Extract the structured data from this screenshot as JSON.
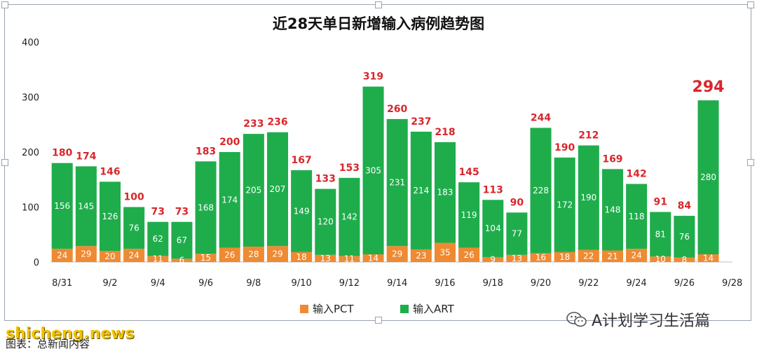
{
  "chart_data": {
    "type": "bar",
    "stacked": true,
    "title": "近28天单日新增输入病例趋势图",
    "ylim": [
      0,
      400
    ],
    "yticks": [
      0,
      100,
      200,
      300,
      400
    ],
    "grid": false,
    "legend_position": "bottom",
    "categories": [
      "8/31",
      "9/1",
      "9/2",
      "9/3",
      "9/4",
      "9/5",
      "9/6",
      "9/7",
      "9/8",
      "9/9",
      "9/10",
      "9/11",
      "9/12",
      "9/13",
      "9/14",
      "9/15",
      "9/16",
      "9/17",
      "9/18",
      "9/19",
      "9/20",
      "9/21",
      "9/22",
      "9/23",
      "9/24",
      "9/25",
      "9/26",
      "9/27"
    ],
    "xtick_labels": [
      "8/31",
      "9/2",
      "9/4",
      "9/6",
      "9/8",
      "9/10",
      "9/12",
      "9/14",
      "9/16",
      "9/18",
      "9/20",
      "9/22",
      "9/24",
      "9/26",
      "9/28"
    ],
    "series": [
      {
        "name": "输入PCT",
        "color": "#ef8a32",
        "values": [
          24,
          29,
          20,
          24,
          11,
          6,
          15,
          26,
          28,
          29,
          18,
          13,
          11,
          14,
          29,
          23,
          35,
          26,
          9,
          13,
          16,
          18,
          22,
          21,
          24,
          10,
          8,
          14
        ]
      },
      {
        "name": "输入ART",
        "color": "#1fad4c",
        "values": [
          156,
          145,
          126,
          76,
          62,
          67,
          168,
          174,
          205,
          207,
          149,
          120,
          142,
          305,
          231,
          214,
          183,
          119,
          104,
          77,
          228,
          172,
          190,
          148,
          118,
          81,
          76,
          280
        ]
      }
    ],
    "totals": [
      180,
      174,
      146,
      100,
      73,
      73,
      183,
      200,
      233,
      236,
      167,
      133,
      153,
      319,
      260,
      237,
      218,
      145,
      113,
      90,
      244,
      190,
      212,
      169,
      142,
      91,
      84,
      294
    ]
  },
  "footer": {
    "wechat_account": "A计划学习生活篇",
    "watermark": "shicheng.news",
    "caption": "图表：总新闻内容"
  }
}
